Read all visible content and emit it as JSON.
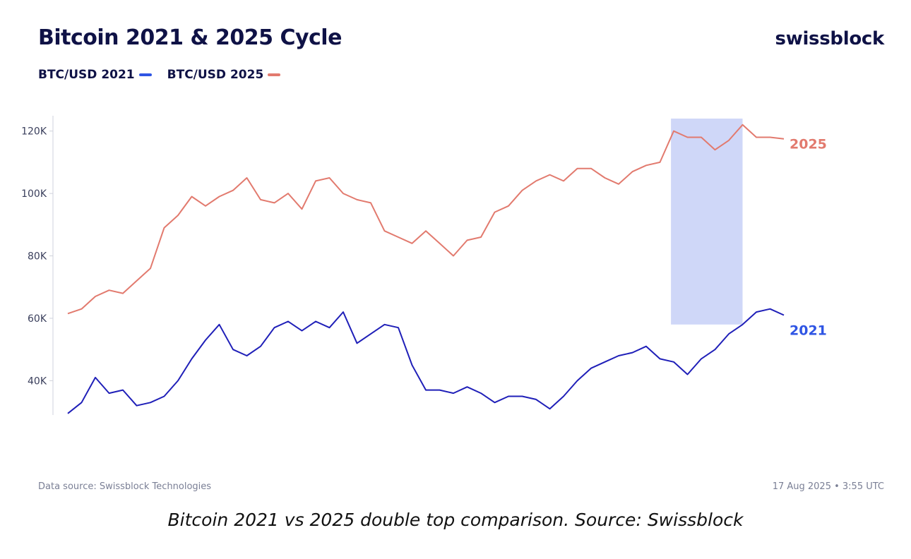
{
  "header": {
    "title": "Bitcoin 2021 & 2025 Cycle",
    "brand": "swissblock"
  },
  "legend": [
    {
      "label": "BTC/USD 2021",
      "color": "#2f55e4"
    },
    {
      "label": "BTC/USD 2025",
      "color": "#e27a6e"
    }
  ],
  "footer": {
    "source": "Data source: Swissblock Technologies",
    "timestamp": "17 Aug 2025 • 3:55 UTC",
    "caption": "Bitcoin 2021 vs 2025 double top comparison. Source: Swissblock"
  },
  "chart_data": {
    "type": "line",
    "title": "Bitcoin 2021 & 2025 Cycle",
    "xlabel": "",
    "ylabel": "",
    "ylim": [
      29000,
      124000
    ],
    "xlim": [
      0,
      260
    ],
    "y_ticks": [
      40000,
      60000,
      80000,
      100000,
      120000
    ],
    "y_tick_labels": [
      "40K",
      "60K",
      "80K",
      "100K",
      "120K"
    ],
    "grid": false,
    "legend_position": "top-left",
    "highlight": {
      "x_start": 219,
      "x_end": 245,
      "y_start": 58000,
      "y_end": 124000,
      "color": "#c7d0f7"
    },
    "series": [
      {
        "name": "BTC/USD 2021",
        "color": "#1f1fb8",
        "end_label": "2021",
        "end_label_color": "#2f55e4",
        "x": [
          0,
          5,
          10,
          15,
          20,
          25,
          30,
          35,
          40,
          45,
          50,
          55,
          60,
          65,
          70,
          75,
          80,
          85,
          90,
          95,
          100,
          105,
          110,
          115,
          120,
          125,
          130,
          135,
          140,
          145,
          150,
          155,
          160,
          165,
          170,
          175,
          180,
          185,
          190,
          195,
          200,
          205,
          210,
          215,
          220,
          225,
          230,
          235,
          240,
          245,
          250,
          255,
          260
        ],
        "values": [
          29500,
          33000,
          41000,
          36000,
          37000,
          32000,
          33000,
          35000,
          40000,
          47000,
          53000,
          58000,
          50000,
          48000,
          51000,
          57000,
          59000,
          56000,
          59000,
          57000,
          62000,
          52000,
          55000,
          58000,
          57000,
          45000,
          37000,
          37000,
          36000,
          38000,
          36000,
          33000,
          35000,
          35000,
          34000,
          31000,
          35000,
          40000,
          44000,
          46000,
          48000,
          49000,
          51000,
          47000,
          46000,
          42000,
          47000,
          50000,
          55000,
          58000,
          62000,
          63000,
          61000
        ]
      },
      {
        "name": "BTC/USD 2025",
        "color": "#e27a6e",
        "end_label": "2025",
        "end_label_color": "#e27a6e",
        "x": [
          0,
          5,
          10,
          15,
          20,
          25,
          30,
          35,
          40,
          45,
          50,
          55,
          60,
          65,
          70,
          75,
          80,
          85,
          90,
          95,
          100,
          105,
          110,
          115,
          120,
          125,
          130,
          135,
          140,
          145,
          150,
          155,
          160,
          165,
          170,
          175,
          180,
          185,
          190,
          195,
          200,
          205,
          210,
          215,
          220,
          225,
          230,
          235,
          240,
          245,
          250,
          255,
          260
        ],
        "values": [
          61500,
          63000,
          67000,
          69000,
          68000,
          72000,
          76000,
          89000,
          93000,
          99000,
          96000,
          99000,
          101000,
          105000,
          98000,
          97000,
          100000,
          95000,
          104000,
          105000,
          100000,
          98000,
          97000,
          88000,
          86000,
          84000,
          88000,
          84000,
          80000,
          85000,
          86000,
          94000,
          96000,
          101000,
          104000,
          106000,
          104000,
          108000,
          108000,
          105000,
          103000,
          107000,
          109000,
          110000,
          120000,
          118000,
          118000,
          114000,
          117000,
          122000,
          118000,
          118000,
          117500
        ]
      }
    ]
  }
}
